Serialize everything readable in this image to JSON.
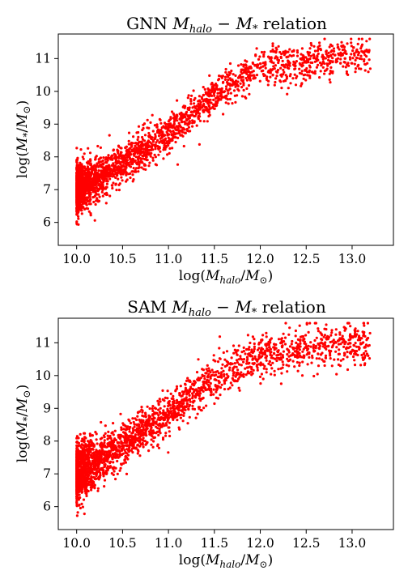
{
  "chart_data": [
    {
      "id": "gnn",
      "type": "scatter",
      "title": "GNN M_halo − M_* relation",
      "title_parts": {
        "prefix": "GNN ",
        "halo_sub": "halo",
        "star_sub": "*",
        "suffix": " relation"
      },
      "xlabel": "log(M_halo/M_⊙)",
      "ylabel": "log(M_*/M_⊙)",
      "xlim": [
        9.8,
        13.45
      ],
      "ylim": [
        5.3,
        11.75
      ],
      "x_ticks": [
        10.0,
        10.5,
        11.0,
        11.5,
        12.0,
        12.5,
        13.0
      ],
      "x_tick_labels": [
        "10.0",
        "10.5",
        "11.0",
        "11.5",
        "12.0",
        "12.5",
        "13.0"
      ],
      "y_ticks": [
        6,
        7,
        8,
        9,
        10,
        11
      ],
      "y_tick_labels": [
        "6",
        "7",
        "8",
        "9",
        "10",
        "11"
      ],
      "grid": false,
      "color": "#ff0000",
      "trend_points": [
        [
          10.0,
          7.0
        ],
        [
          10.5,
          7.8
        ],
        [
          11.0,
          8.7
        ],
        [
          11.5,
          9.9
        ],
        [
          12.0,
          10.7
        ],
        [
          12.5,
          10.9
        ],
        [
          13.2,
          11.2
        ]
      ],
      "scatter_spread": 0.28,
      "x_range": [
        10.0,
        13.2
      ]
    },
    {
      "id": "sam",
      "type": "scatter",
      "title": "SAM M_halo − M_* relation",
      "title_parts": {
        "prefix": "SAM ",
        "halo_sub": "halo",
        "star_sub": "*",
        "suffix": " relation"
      },
      "xlabel": "log(M_halo/M_⊙)",
      "ylabel": "log(M_*/M_⊙)",
      "xlim": [
        9.8,
        13.45
      ],
      "ylim": [
        5.3,
        11.75
      ],
      "x_ticks": [
        10.0,
        10.5,
        11.0,
        11.5,
        12.0,
        12.5,
        13.0
      ],
      "x_tick_labels": [
        "10.0",
        "10.5",
        "11.0",
        "11.5",
        "12.0",
        "12.5",
        "13.0"
      ],
      "y_ticks": [
        6,
        7,
        8,
        9,
        10,
        11
      ],
      "y_tick_labels": [
        "6",
        "7",
        "8",
        "9",
        "10",
        "11"
      ],
      "grid": false,
      "color": "#ff0000",
      "trend_points": [
        [
          10.0,
          7.0
        ],
        [
          10.5,
          7.9
        ],
        [
          11.0,
          8.8
        ],
        [
          11.5,
          9.9
        ],
        [
          12.0,
          10.6
        ],
        [
          12.5,
          10.85
        ],
        [
          13.2,
          11.0
        ]
      ],
      "scatter_spread": 0.32,
      "x_range": [
        10.0,
        13.2
      ]
    }
  ]
}
